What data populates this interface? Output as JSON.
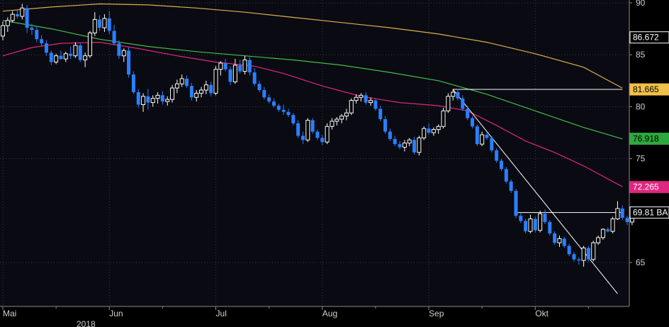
{
  "chart_data": {
    "type": "candlestick",
    "title": "",
    "xlabel": "",
    "ylabel": "",
    "ylim": [
      60.5,
      90
    ],
    "grid": true,
    "y_ticks": [
      "90",
      "85",
      "80",
      "75",
      "65"
    ],
    "x_tick_labels": [
      "Mai",
      "Jun",
      "Jul",
      "Aug",
      "Sep",
      "Okt"
    ],
    "year_label": "2018",
    "colors": {
      "up": "#ffffff",
      "down": "#2b7fff",
      "ma_gold": "#d8b04c",
      "ma_green": "#3fbf4a",
      "ma_pink": "#e0267f",
      "trendline": "#ffffff"
    },
    "candles": [
      [
        86.8,
        88.2,
        86.4,
        87.8
      ],
      [
        87.8,
        88.6,
        87.2,
        88.3
      ],
      [
        88.3,
        89.2,
        88.1,
        88.9
      ],
      [
        88.9,
        89.4,
        88.5,
        88.7
      ],
      [
        88.7,
        89.9,
        88.4,
        89.5
      ],
      [
        89.5,
        89.8,
        87.1,
        87.6
      ],
      [
        87.6,
        88.0,
        86.9,
        87.4
      ],
      [
        87.4,
        87.7,
        86.2,
        86.5
      ],
      [
        86.5,
        86.9,
        85.8,
        86.1
      ],
      [
        86.1,
        86.4,
        84.9,
        85.2
      ],
      [
        85.2,
        85.4,
        84.0,
        84.3
      ],
      [
        84.3,
        85.1,
        84.1,
        84.9
      ],
      [
        84.9,
        85.4,
        84.5,
        84.6
      ],
      [
        84.6,
        85.3,
        84.3,
        85.1
      ],
      [
        85.1,
        85.8,
        84.6,
        84.9
      ],
      [
        84.9,
        86.2,
        84.7,
        85.9
      ],
      [
        85.9,
        86.1,
        84.3,
        84.5
      ],
      [
        84.5,
        85.2,
        83.8,
        84.9
      ],
      [
        84.9,
        87.3,
        84.7,
        87.1
      ],
      [
        87.1,
        89.1,
        86.8,
        88.4
      ],
      [
        88.4,
        88.8,
        87.3,
        87.6
      ],
      [
        87.6,
        88.9,
        87.2,
        88.5
      ],
      [
        88.5,
        89.2,
        87.0,
        87.3
      ],
      [
        87.3,
        87.9,
        85.9,
        86.1
      ],
      [
        86.1,
        86.4,
        84.6,
        84.9
      ],
      [
        84.9,
        85.6,
        84.3,
        85.4
      ],
      [
        85.4,
        85.7,
        82.8,
        83.1
      ],
      [
        83.1,
        83.4,
        81.2,
        81.4
      ],
      [
        81.4,
        81.7,
        79.9,
        80.2
      ],
      [
        80.2,
        81.3,
        79.5,
        81.0
      ],
      [
        81.0,
        81.7,
        79.7,
        80.4
      ],
      [
        80.4,
        81.1,
        80.0,
        80.8
      ],
      [
        80.8,
        81.4,
        80.3,
        81.1
      ],
      [
        81.1,
        81.5,
        80.2,
        80.5
      ],
      [
        80.5,
        81.0,
        80.1,
        80.7
      ],
      [
        80.7,
        82.1,
        80.4,
        81.8
      ],
      [
        81.8,
        82.6,
        81.3,
        82.2
      ],
      [
        82.2,
        83.1,
        81.9,
        82.7
      ],
      [
        82.7,
        83.0,
        81.8,
        82.0
      ],
      [
        82.0,
        82.3,
        80.6,
        80.9
      ],
      [
        80.9,
        81.6,
        80.5,
        81.3
      ],
      [
        81.3,
        81.9,
        80.9,
        81.6
      ],
      [
        81.6,
        82.5,
        81.2,
        82.1
      ],
      [
        82.1,
        82.4,
        81.0,
        81.3
      ],
      [
        81.3,
        83.9,
        81.1,
        83.6
      ],
      [
        83.6,
        84.4,
        83.0,
        84.2
      ],
      [
        84.2,
        84.6,
        83.4,
        83.6
      ],
      [
        83.6,
        83.9,
        82.1,
        82.4
      ],
      [
        82.4,
        84.6,
        82.2,
        84.0
      ],
      [
        84.0,
        84.5,
        83.2,
        83.4
      ],
      [
        83.4,
        84.9,
        83.1,
        84.5
      ],
      [
        84.5,
        84.8,
        83.0,
        83.3
      ],
      [
        83.3,
        83.7,
        82.0,
        82.2
      ],
      [
        82.2,
        82.5,
        81.4,
        81.6
      ],
      [
        81.6,
        81.9,
        80.7,
        80.9
      ],
      [
        80.9,
        81.2,
        80.3,
        80.5
      ],
      [
        80.5,
        80.8,
        79.9,
        80.1
      ],
      [
        80.1,
        80.3,
        79.5,
        79.7
      ],
      [
        79.7,
        80.2,
        79.2,
        79.5
      ],
      [
        79.5,
        79.8,
        79.0,
        79.2
      ],
      [
        79.2,
        79.4,
        78.2,
        78.4
      ],
      [
        78.4,
        78.7,
        77.0,
        77.2
      ],
      [
        77.2,
        77.6,
        76.4,
        76.8
      ],
      [
        76.8,
        78.9,
        76.6,
        78.7
      ],
      [
        78.7,
        78.9,
        77.4,
        77.6
      ],
      [
        77.6,
        77.8,
        76.8,
        77.0
      ],
      [
        77.0,
        77.3,
        76.3,
        76.6
      ],
      [
        76.6,
        78.4,
        76.4,
        78.1
      ],
      [
        78.1,
        78.9,
        77.8,
        78.6
      ],
      [
        78.6,
        79.0,
        78.2,
        78.8
      ],
      [
        78.8,
        79.3,
        78.4,
        79.1
      ],
      [
        79.1,
        79.8,
        78.7,
        79.4
      ],
      [
        79.4,
        80.8,
        79.2,
        80.6
      ],
      [
        80.6,
        81.2,
        80.3,
        80.9
      ],
      [
        80.9,
        81.3,
        80.5,
        81.1
      ],
      [
        81.1,
        81.4,
        80.2,
        80.4
      ],
      [
        80.4,
        80.9,
        80.1,
        80.6
      ],
      [
        80.6,
        80.8,
        79.6,
        79.8
      ],
      [
        79.8,
        80.1,
        78.6,
        78.8
      ],
      [
        78.8,
        79.1,
        77.4,
        77.6
      ],
      [
        77.6,
        77.9,
        76.7,
        76.9
      ],
      [
        76.9,
        77.2,
        76.2,
        76.4
      ],
      [
        76.4,
        76.7,
        75.9,
        76.1
      ],
      [
        76.1,
        76.8,
        75.7,
        76.5
      ],
      [
        76.5,
        77.0,
        76.2,
        76.8
      ],
      [
        76.8,
        77.1,
        75.4,
        75.6
      ],
      [
        75.6,
        77.2,
        75.3,
        77.0
      ],
      [
        77.0,
        78.1,
        76.8,
        77.9
      ],
      [
        77.9,
        78.4,
        77.3,
        77.5
      ],
      [
        77.5,
        78.0,
        77.2,
        77.8
      ],
      [
        77.8,
        78.3,
        77.4,
        78.1
      ],
      [
        78.1,
        79.9,
        77.9,
        79.6
      ],
      [
        79.6,
        81.3,
        79.4,
        81.0
      ],
      [
        81.0,
        81.7,
        80.6,
        81.4
      ],
      [
        81.4,
        81.7,
        80.6,
        80.8
      ],
      [
        80.8,
        81.1,
        79.6,
        79.8
      ],
      [
        79.8,
        80.1,
        78.7,
        78.9
      ],
      [
        78.9,
        79.1,
        77.9,
        78.1
      ],
      [
        78.1,
        78.3,
        76.2,
        76.4
      ],
      [
        76.4,
        77.6,
        76.2,
        77.3
      ],
      [
        77.3,
        77.5,
        76.8,
        77.0
      ],
      [
        77.0,
        77.2,
        75.6,
        75.8
      ],
      [
        75.8,
        76.0,
        74.6,
        74.8
      ],
      [
        74.8,
        75.0,
        73.8,
        74.0
      ],
      [
        74.0,
        74.2,
        72.6,
        72.8
      ],
      [
        72.8,
        73.0,
        71.7,
        71.9
      ],
      [
        71.9,
        72.1,
        69.3,
        69.5
      ],
      [
        69.5,
        69.8,
        68.8,
        69.0
      ],
      [
        69.0,
        69.2,
        67.8,
        68.0
      ],
      [
        68.0,
        69.6,
        67.8,
        69.2
      ],
      [
        69.2,
        69.4,
        67.9,
        68.1
      ],
      [
        68.1,
        70.0,
        67.9,
        69.7
      ],
      [
        69.7,
        70.1,
        68.7,
        68.9
      ],
      [
        68.9,
        69.1,
        67.6,
        67.8
      ],
      [
        67.8,
        68.0,
        66.7,
        66.9
      ],
      [
        66.9,
        67.6,
        66.5,
        67.3
      ],
      [
        67.3,
        67.5,
        66.4,
        66.6
      ],
      [
        66.6,
        66.8,
        65.6,
        65.8
      ],
      [
        65.8,
        66.0,
        65.1,
        65.3
      ],
      [
        65.3,
        65.5,
        64.8,
        65.2
      ],
      [
        65.2,
        66.6,
        64.6,
        66.4
      ],
      [
        66.4,
        66.6,
        65.1,
        65.3
      ],
      [
        65.3,
        67.1,
        65.1,
        66.9
      ],
      [
        66.9,
        67.6,
        66.7,
        67.4
      ],
      [
        67.4,
        68.3,
        67.2,
        68.2
      ],
      [
        68.2,
        68.4,
        67.9,
        68.0
      ],
      [
        68.0,
        69.4,
        67.8,
        69.2
      ],
      [
        69.2,
        70.9,
        69.1,
        70.2
      ],
      [
        70.2,
        70.5,
        69.1,
        69.3
      ],
      [
        69.3,
        69.5,
        68.6,
        68.9
      ],
      [
        68.9,
        69.9,
        68.6,
        69.6
      ],
      [
        69.6,
        70.3,
        69.4,
        69.9
      ],
      [
        69.8,
        70.0,
        69.6,
        69.81
      ]
    ],
    "moving_averages": [
      {
        "name": "",
        "color": "#d8b04c",
        "values": [
          [
            0,
            89.2
          ],
          [
            10,
            89.6
          ],
          [
            20,
            89.9
          ],
          [
            30,
            89.8
          ],
          [
            40,
            89.5
          ],
          [
            50,
            89.1
          ],
          [
            60,
            88.6
          ],
          [
            70,
            88.1
          ],
          [
            80,
            87.6
          ],
          [
            90,
            87.0
          ],
          [
            100,
            86.2
          ],
          [
            110,
            85.1
          ],
          [
            120,
            83.8
          ],
          [
            128,
            81.8
          ]
        ]
      },
      {
        "name": "",
        "color": "#3fbf4a",
        "values": [
          [
            0,
            88.3
          ],
          [
            10,
            87.5
          ],
          [
            20,
            86.5
          ],
          [
            30,
            85.8
          ],
          [
            40,
            85.3
          ],
          [
            50,
            84.9
          ],
          [
            60,
            84.5
          ],
          [
            70,
            84.0
          ],
          [
            80,
            83.3
          ],
          [
            90,
            82.5
          ],
          [
            100,
            81.2
          ],
          [
            110,
            79.6
          ],
          [
            120,
            78.0
          ],
          [
            128,
            76.9
          ]
        ]
      },
      {
        "name": "",
        "color": "#e0267f",
        "values": [
          [
            0,
            84.9
          ],
          [
            6,
            85.7
          ],
          [
            12,
            86.1
          ],
          [
            20,
            86.2
          ],
          [
            28,
            85.6
          ],
          [
            36,
            84.9
          ],
          [
            44,
            84.3
          ],
          [
            52,
            83.9
          ],
          [
            58,
            83.2
          ],
          [
            66,
            82.0
          ],
          [
            74,
            81.0
          ],
          [
            82,
            80.4
          ],
          [
            90,
            80.1
          ],
          [
            96,
            79.6
          ],
          [
            102,
            78.2
          ],
          [
            108,
            76.7
          ],
          [
            114,
            75.6
          ],
          [
            120,
            74.3
          ],
          [
            128,
            72.3
          ]
        ]
      }
    ],
    "lines": [
      {
        "from": [
          93,
          81.665
        ],
        "to": [
          128,
          81.665
        ],
        "color": "#ffffff"
      },
      {
        "from": [
          106,
          69.81
        ],
        "to": [
          128,
          69.81
        ],
        "color": "#ffffff"
      },
      {
        "from": [
          93,
          81.665
        ],
        "to": [
          127,
          62.0
        ],
        "color": "#ffffff"
      }
    ],
    "value_tags": [
      {
        "value": 86.672,
        "text": "86.672",
        "bg": "#000000",
        "fg": "#ffffff",
        "border": "#ffffff"
      },
      {
        "value": 81.665,
        "text": "81.665",
        "bg": "#f2c14a",
        "fg": "#000000",
        "border": "#f2c14a"
      },
      {
        "value": 76.918,
        "text": "76.918",
        "bg": "#2ea83d",
        "fg": "#000000",
        "border": "#2ea83d"
      },
      {
        "value": 72.265,
        "text": "72.265",
        "bg": "#e0267f",
        "fg": "#ffffff",
        "border": "#e0267f"
      },
      {
        "value": 69.81,
        "text": "69.81 BA",
        "bg": "#000000",
        "fg": "#ffffff",
        "border": "#ffffff"
      }
    ]
  }
}
